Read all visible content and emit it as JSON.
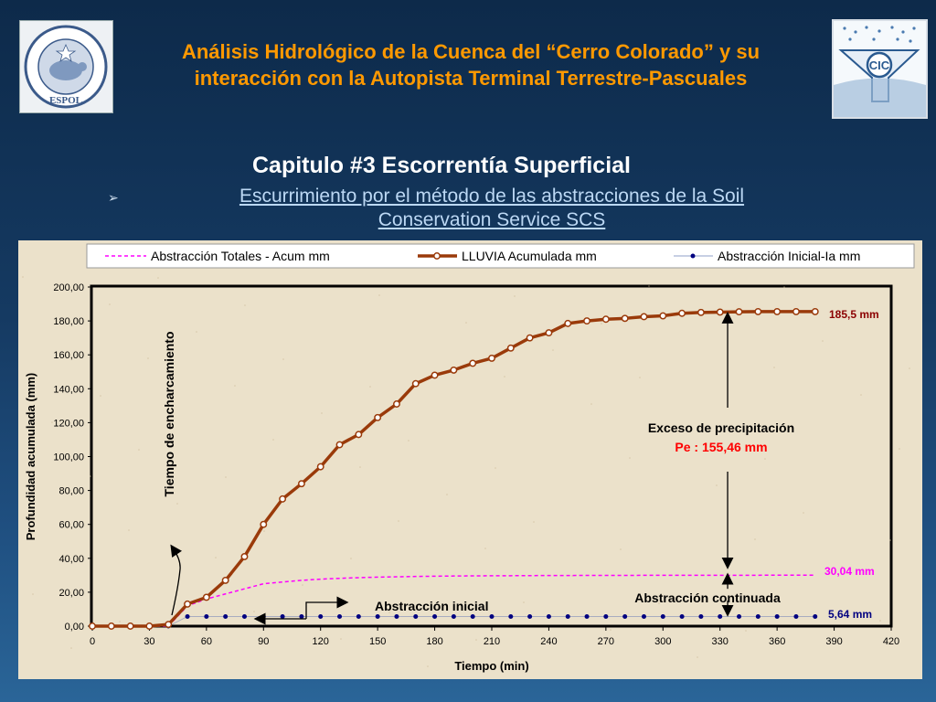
{
  "header": {
    "title_line1": "Análisis Hidrológico de la Cuenca del “Cerro Colorado” y su",
    "title_line2": "interacción con la Autopista Terminal Terrestre-Pascuales",
    "logo_left_text": "ESCUELA SUPERIOR POLITECNICA DEL LITORAL · ESPOL",
    "logo_right_text": "CIC"
  },
  "slide": {
    "chapter": "Capitulo #3 Escorrentía Superficial",
    "subtitle_line1": "Escurrimiento por el método de las abstracciones de la Soil",
    "subtitle_line2": "Conservation Service SCS"
  },
  "colors": {
    "rain": "#9a3a0a",
    "abs_total": "#ff00ff",
    "abs_initial": "#000080",
    "title": "#ff9900",
    "label_red": "#ff0000",
    "label_darkred": "#8b0000"
  },
  "chart_data": {
    "type": "line",
    "xlabel": "Tiempo (min)",
    "ylabel": "Profundidad acumulada (mm)",
    "xlim": [
      0,
      420
    ],
    "ylim": [
      0,
      200
    ],
    "x_ticks": [
      "0",
      "30",
      "60",
      "90",
      "120",
      "150",
      "180",
      "210",
      "240",
      "270",
      "300",
      "330",
      "360",
      "390",
      "420"
    ],
    "y_ticks": [
      "0,00",
      "20,00",
      "40,00",
      "60,00",
      "80,00",
      "100,00",
      "120,00",
      "140,00",
      "160,00",
      "180,00",
      "200,00"
    ],
    "x": [
      0,
      10,
      20,
      30,
      40,
      50,
      60,
      70,
      80,
      90,
      100,
      110,
      120,
      130,
      140,
      150,
      160,
      170,
      180,
      190,
      200,
      210,
      220,
      230,
      240,
      250,
      260,
      270,
      280,
      290,
      300,
      310,
      320,
      330,
      340,
      350,
      360,
      370,
      380
    ],
    "series": [
      {
        "name": "Abstracción Totales - Acum mm",
        "values": [
          0,
          0,
          0,
          0,
          0,
          12,
          16,
          19,
          22,
          25,
          26,
          27,
          27.7,
          28.2,
          28.6,
          28.9,
          29.1,
          29.3,
          29.45,
          29.55,
          29.65,
          29.7,
          29.75,
          29.8,
          29.85,
          29.88,
          29.9,
          29.92,
          29.94,
          29.96,
          29.97,
          29.98,
          29.99,
          30,
          30.01,
          30.02,
          30.03,
          30.035,
          30.04
        ]
      },
      {
        "name": "LLUVIA Acumulada mm",
        "values": [
          0,
          0,
          0,
          0,
          1,
          13,
          17,
          27,
          41,
          60,
          75,
          84,
          94,
          107,
          113,
          123,
          131,
          143,
          148,
          151,
          155,
          158,
          164,
          170,
          173,
          178.5,
          180,
          181,
          181.5,
          182.5,
          183,
          184.5,
          185,
          185.2,
          185.4,
          185.5,
          185.5,
          185.5,
          185.5
        ]
      },
      {
        "name": "Abstracción Inicial-Ia mm",
        "values": [
          0,
          0,
          0,
          0,
          0,
          5.64,
          5.64,
          5.64,
          5.64,
          5.64,
          5.64,
          5.64,
          5.64,
          5.64,
          5.64,
          5.64,
          5.64,
          5.64,
          5.64,
          5.64,
          5.64,
          5.64,
          5.64,
          5.64,
          5.64,
          5.64,
          5.64,
          5.64,
          5.64,
          5.64,
          5.64,
          5.64,
          5.64,
          5.64,
          5.64,
          5.64,
          5.64,
          5.64,
          5.64
        ]
      }
    ],
    "annotations": {
      "rain_total": "185,5 mm",
      "abs_total": "30,04 mm",
      "abs_initial": "5,64 mm",
      "excess_title": "Exceso de precipitación",
      "excess_value": "Pe : 155,46 mm",
      "ponding": "Tiempo de encharcamiento",
      "initial_abstraction": "Abstracción inicial",
      "continued_abstraction": "Abstracción continuada"
    }
  }
}
